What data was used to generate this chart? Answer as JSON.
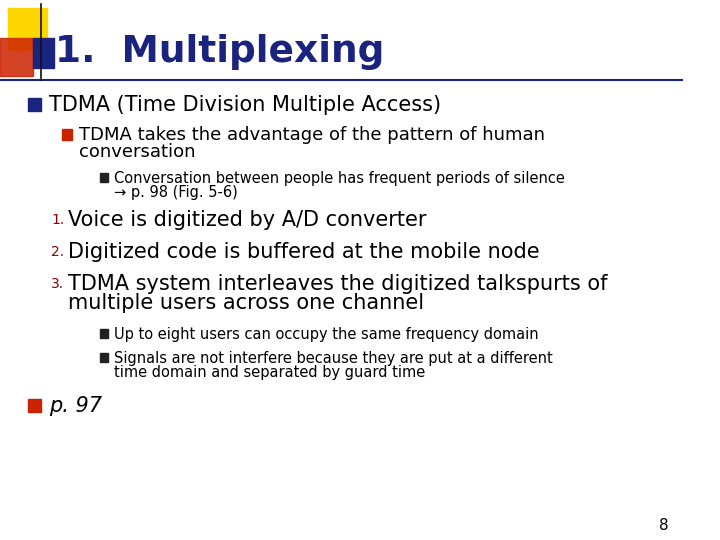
{
  "title": "1.  Multiplexing",
  "title_color": "#1a237e",
  "bg_color": "#ffffff",
  "slide_number": "8",
  "accent_yellow": "#FFD700",
  "accent_red": "#CC2200",
  "accent_blue": "#1a237e",
  "bullet1_text": "TDMA (Time Division Multiple Access)",
  "bullet1_marker_color": "#1a237e",
  "bullet2_text_l1": "TDMA takes the advantage of the pattern of human",
  "bullet2_text_l2": "conversation",
  "bullet2_marker_color": "#CC2200",
  "bullet3_text_l1": "Conversation between people has frequent periods of silence",
  "bullet3_text_l2": "→ p. 98 (Fig. 5-6)",
  "bullet3_marker_color": "#222222",
  "num1_text": "Voice is digitized by A/D converter",
  "num2_text": "Digitized code is buffered at the mobile node",
  "num3_text_l1": "TDMA system interleaves the digitized talkspurts of",
  "num3_text_l2": "multiple users across one channel",
  "num_color": "#8B0000",
  "sub1_text": "Up to eight users can occupy the same frequency domain",
  "sub2_text_l1": "Signals are not interfere because they are put at a different",
  "sub2_text_l2": "time domain and separated by guard time",
  "sub_marker_color": "#222222",
  "final_bullet_text": "p. 97",
  "final_bullet_marker": "#CC2200",
  "text_color": "#000000"
}
